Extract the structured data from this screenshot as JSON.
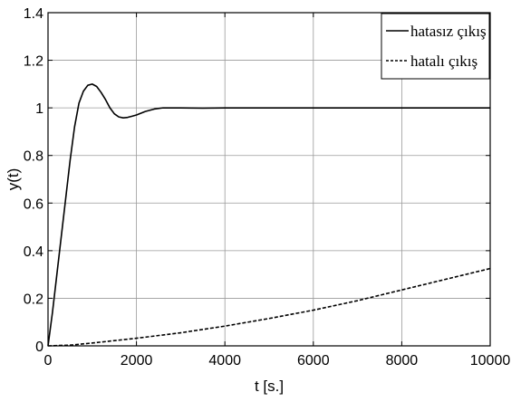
{
  "chart_data": {
    "type": "line",
    "xlabel": "t [s.]",
    "ylabel": "y(t)",
    "xlim": [
      0,
      10000
    ],
    "ylim": [
      0,
      1.4
    ],
    "grid": true,
    "legend_position": "top-right",
    "x_ticks": [
      0,
      2000,
      4000,
      6000,
      8000,
      10000
    ],
    "y_ticks": [
      0,
      0.2,
      0.4,
      0.6,
      0.8,
      1,
      1.2,
      1.4
    ],
    "x_tick_labels": [
      "0",
      "2000",
      "4000",
      "6000",
      "8000",
      "10000"
    ],
    "y_tick_labels": [
      "0",
      "0.2",
      "0.4",
      "0.6",
      "0.8",
      "1",
      "1.2",
      "1.4"
    ],
    "series": [
      {
        "name": "hatasız çıkış",
        "style": "solid",
        "color": "#000000",
        "x": [
          0,
          100,
          200,
          300,
          400,
          500,
          600,
          700,
          800,
          900,
          1000,
          1100,
          1200,
          1300,
          1400,
          1500,
          1600,
          1700,
          1800,
          1900,
          2000,
          2200,
          2400,
          2600,
          2800,
          3000,
          3500,
          4000,
          5000,
          6000,
          7000,
          8000,
          9000,
          10000
        ],
        "y": [
          0,
          0.14,
          0.3,
          0.46,
          0.62,
          0.78,
          0.92,
          1.02,
          1.07,
          1.095,
          1.1,
          1.09,
          1.065,
          1.035,
          1.0,
          0.975,
          0.962,
          0.958,
          0.96,
          0.965,
          0.97,
          0.985,
          0.995,
          1.0,
          1.0,
          1.0,
          0.999,
          1.0,
          1.0,
          1.0,
          1.0,
          1.0,
          1.0,
          1.0
        ]
      },
      {
        "name": "hatalı çıkış",
        "style": "dashed",
        "color": "#000000",
        "x": [
          0,
          500,
          1000,
          1500,
          2000,
          3000,
          4000,
          5000,
          6000,
          7000,
          8000,
          9000,
          10000
        ],
        "y": [
          0,
          0.003,
          0.012,
          0.022,
          0.032,
          0.055,
          0.083,
          0.115,
          0.15,
          0.19,
          0.235,
          0.28,
          0.325
        ]
      }
    ]
  }
}
